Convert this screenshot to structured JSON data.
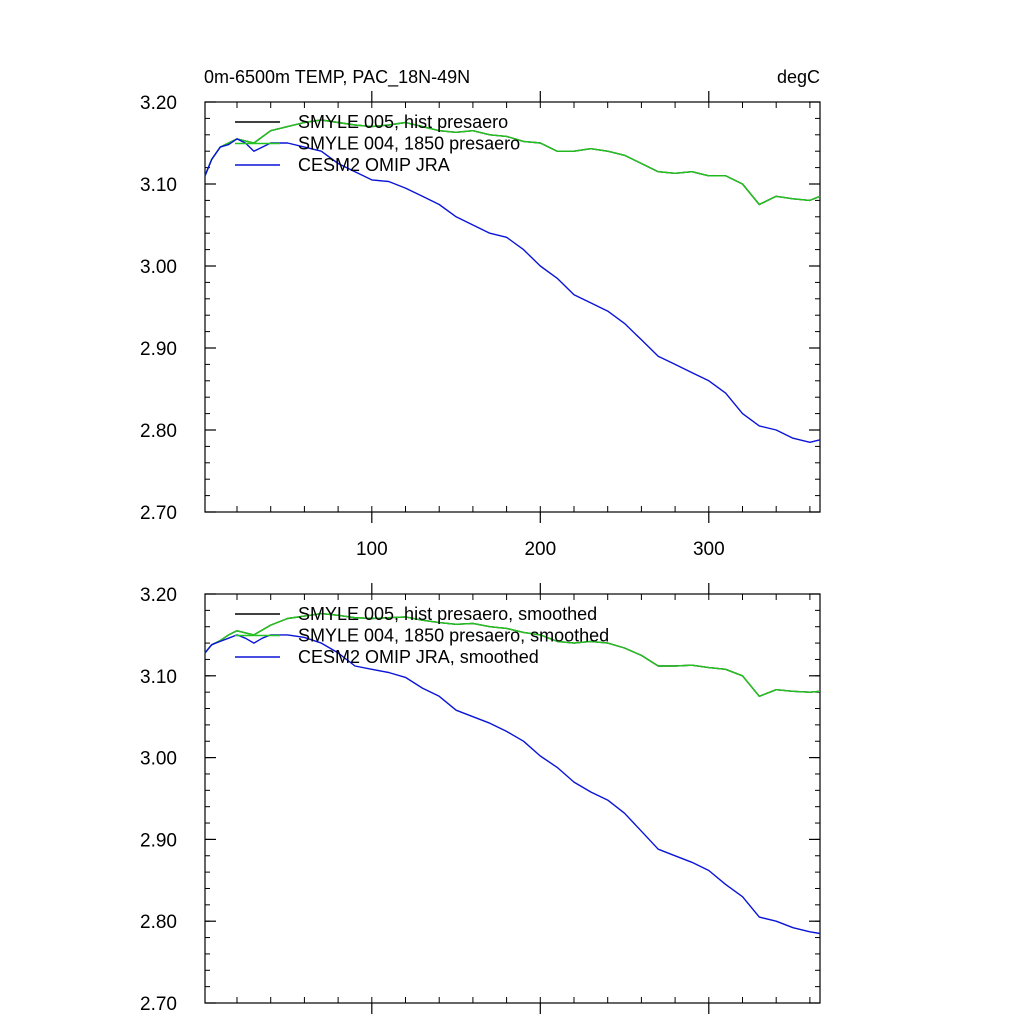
{
  "chart_data": [
    {
      "type": "line",
      "title": "0m-6500m TEMP, PAC_18N-49N",
      "units": "degC",
      "xlabel": "",
      "ylabel": "",
      "xlim": [
        1,
        366
      ],
      "ylim": [
        2.7,
        3.2
      ],
      "x_ticks": [
        100,
        200,
        300
      ],
      "x_tick_labels": [
        "100",
        "200",
        "300"
      ],
      "y_ticks": [
        2.7,
        2.8,
        2.9,
        3.0,
        3.1,
        3.2
      ],
      "y_tick_labels": [
        "2.70",
        "2.80",
        "2.90",
        "3.00",
        "3.10",
        "3.20"
      ],
      "legend_position": "top-left",
      "series": [
        {
          "name": "SMYLE 005, hist presaero",
          "color": "#000000",
          "x": [
            1,
            5,
            10,
            15,
            20,
            30,
            40,
            50,
            60,
            70,
            80,
            90,
            100,
            110,
            120,
            130,
            140,
            150,
            160,
            170,
            180,
            190,
            200,
            210,
            220,
            230,
            240,
            250,
            260,
            270,
            280,
            290,
            300,
            310,
            320,
            330,
            340,
            350,
            360,
            366
          ],
          "values": [
            3.11,
            3.13,
            3.145,
            3.15,
            3.155,
            3.15,
            3.165,
            3.17,
            3.175,
            3.178,
            3.175,
            3.172,
            3.17,
            3.172,
            3.175,
            3.17,
            3.165,
            3.163,
            3.165,
            3.16,
            3.158,
            3.152,
            3.15,
            3.14,
            3.14,
            3.143,
            3.14,
            3.135,
            3.125,
            3.115,
            3.113,
            3.115,
            3.11,
            3.11,
            3.1,
            3.075,
            3.085,
            3.082,
            3.08,
            3.085
          ]
        },
        {
          "name": "SMYLE 004, 1850 presaero",
          "color": "#22c41f",
          "x": [
            1,
            5,
            10,
            15,
            20,
            30,
            40,
            50,
            60,
            70,
            80,
            90,
            100,
            110,
            120,
            130,
            140,
            150,
            160,
            170,
            180,
            190,
            200,
            210,
            220,
            230,
            240,
            250,
            260,
            270,
            280,
            290,
            300,
            310,
            320,
            330,
            340,
            350,
            360,
            366
          ],
          "values": [
            3.11,
            3.13,
            3.145,
            3.15,
            3.155,
            3.15,
            3.165,
            3.17,
            3.175,
            3.178,
            3.175,
            3.172,
            3.17,
            3.172,
            3.175,
            3.17,
            3.165,
            3.163,
            3.165,
            3.16,
            3.158,
            3.152,
            3.15,
            3.14,
            3.14,
            3.143,
            3.14,
            3.135,
            3.125,
            3.115,
            3.113,
            3.115,
            3.11,
            3.11,
            3.1,
            3.075,
            3.085,
            3.082,
            3.08,
            3.085
          ]
        },
        {
          "name": "CESM2 OMIP JRA",
          "color": "#0a14d6",
          "x": [
            1,
            5,
            10,
            15,
            20,
            25,
            30,
            35,
            40,
            50,
            60,
            70,
            80,
            90,
            100,
            110,
            120,
            130,
            140,
            150,
            160,
            170,
            180,
            190,
            200,
            210,
            220,
            230,
            240,
            250,
            260,
            270,
            280,
            290,
            300,
            310,
            320,
            330,
            340,
            350,
            360,
            366
          ],
          "values": [
            3.11,
            3.13,
            3.145,
            3.148,
            3.155,
            3.15,
            3.14,
            3.145,
            3.15,
            3.15,
            3.145,
            3.14,
            3.125,
            3.115,
            3.105,
            3.103,
            3.095,
            3.085,
            3.075,
            3.06,
            3.05,
            3.04,
            3.035,
            3.02,
            3.0,
            2.985,
            2.965,
            2.955,
            2.945,
            2.93,
            2.91,
            2.89,
            2.88,
            2.87,
            2.86,
            2.845,
            2.82,
            2.805,
            2.8,
            2.79,
            2.785,
            2.788
          ]
        }
      ]
    },
    {
      "type": "line",
      "title": "",
      "units": "",
      "xlabel": "",
      "ylabel": "",
      "xlim": [
        1,
        366
      ],
      "ylim": [
        2.7,
        3.2
      ],
      "x_ticks": [
        100,
        200,
        300
      ],
      "x_tick_labels": [],
      "y_ticks": [
        2.7,
        2.8,
        2.9,
        3.0,
        3.1,
        3.2
      ],
      "y_tick_labels": [
        "2.70",
        "2.80",
        "2.90",
        "3.00",
        "3.10",
        "3.20"
      ],
      "legend_position": "top-left",
      "series": [
        {
          "name": "SMYLE 005, hist presaero, smoothed",
          "color": "#000000",
          "x": [
            1,
            5,
            10,
            15,
            20,
            30,
            40,
            50,
            60,
            70,
            80,
            90,
            100,
            110,
            120,
            130,
            140,
            150,
            160,
            170,
            180,
            190,
            200,
            210,
            220,
            230,
            240,
            250,
            260,
            270,
            280,
            290,
            300,
            310,
            320,
            330,
            340,
            350,
            360,
            366
          ],
          "values": [
            3.128,
            3.138,
            3.143,
            3.15,
            3.155,
            3.15,
            3.162,
            3.17,
            3.173,
            3.176,
            3.174,
            3.171,
            3.17,
            3.171,
            3.172,
            3.168,
            3.165,
            3.163,
            3.164,
            3.16,
            3.158,
            3.153,
            3.15,
            3.142,
            3.14,
            3.142,
            3.14,
            3.134,
            3.125,
            3.112,
            3.112,
            3.113,
            3.11,
            3.108,
            3.1,
            3.075,
            3.083,
            3.081,
            3.08,
            3.081
          ]
        },
        {
          "name": "SMYLE 004, 1850 presaero, smoothed",
          "color": "#22c41f",
          "x": [
            1,
            5,
            10,
            15,
            20,
            30,
            40,
            50,
            60,
            70,
            80,
            90,
            100,
            110,
            120,
            130,
            140,
            150,
            160,
            170,
            180,
            190,
            200,
            210,
            220,
            230,
            240,
            250,
            260,
            270,
            280,
            290,
            300,
            310,
            320,
            330,
            340,
            350,
            360,
            366
          ],
          "values": [
            3.128,
            3.138,
            3.143,
            3.15,
            3.155,
            3.15,
            3.162,
            3.17,
            3.173,
            3.176,
            3.174,
            3.171,
            3.17,
            3.171,
            3.172,
            3.168,
            3.165,
            3.163,
            3.164,
            3.16,
            3.158,
            3.153,
            3.15,
            3.142,
            3.14,
            3.142,
            3.14,
            3.134,
            3.125,
            3.112,
            3.112,
            3.113,
            3.11,
            3.108,
            3.1,
            3.075,
            3.083,
            3.081,
            3.08,
            3.081
          ]
        },
        {
          "name": "CESM2 OMIP JRA, smoothed",
          "color": "#0a14d6",
          "x": [
            1,
            5,
            10,
            15,
            20,
            25,
            30,
            35,
            40,
            50,
            60,
            70,
            80,
            90,
            100,
            110,
            120,
            130,
            140,
            150,
            160,
            170,
            180,
            190,
            200,
            210,
            220,
            230,
            240,
            250,
            260,
            270,
            280,
            290,
            300,
            310,
            320,
            330,
            340,
            350,
            360,
            366
          ],
          "values": [
            3.128,
            3.138,
            3.142,
            3.146,
            3.15,
            3.146,
            3.14,
            3.146,
            3.15,
            3.15,
            3.147,
            3.14,
            3.128,
            3.112,
            3.108,
            3.104,
            3.098,
            3.085,
            3.075,
            3.058,
            3.05,
            3.042,
            3.032,
            3.02,
            3.002,
            2.988,
            2.97,
            2.958,
            2.948,
            2.932,
            2.91,
            2.888,
            2.88,
            2.872,
            2.862,
            2.845,
            2.83,
            2.805,
            2.8,
            2.792,
            2.787,
            2.785
          ]
        }
      ]
    }
  ]
}
